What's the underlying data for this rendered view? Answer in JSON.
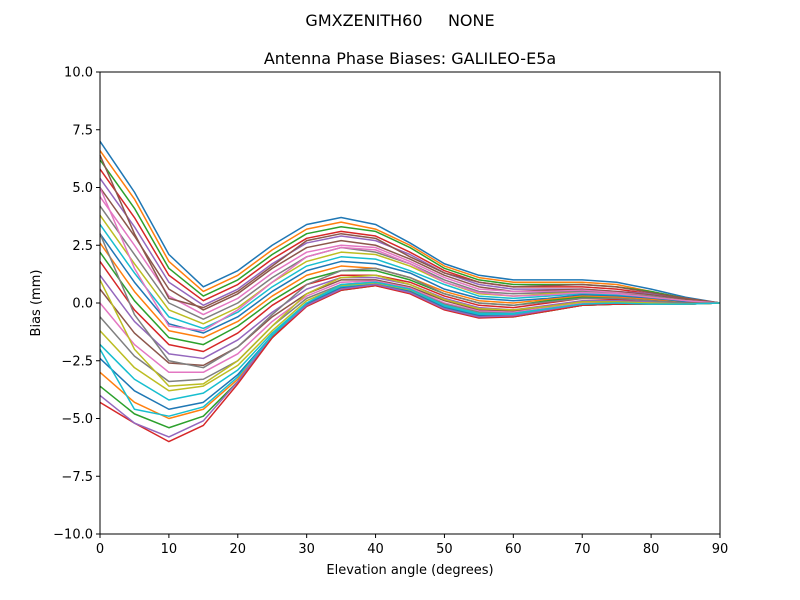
{
  "chart_data": {
    "type": "line",
    "suptitle": "GMXZENITH60     NONE",
    "title": "Antenna Phase Biases: GALILEO-E5a",
    "xlabel": "Elevation angle (degrees)",
    "ylabel": "Bias (mm)",
    "xlim": [
      0,
      90
    ],
    "ylim": [
      -10,
      10
    ],
    "xticks": [
      0,
      10,
      20,
      30,
      40,
      50,
      60,
      70,
      80,
      90
    ],
    "xtick_labels": [
      "0",
      "10",
      "20",
      "30",
      "40",
      "50",
      "60",
      "70",
      "80",
      "90"
    ],
    "yticks": [
      -10,
      -7.5,
      -5,
      -2.5,
      0,
      2.5,
      5,
      7.5,
      10
    ],
    "ytick_labels": [
      "−10.0",
      "−7.5",
      "−5.0",
      "−2.5",
      "0.0",
      "2.5",
      "5.0",
      "7.5",
      "10.0"
    ],
    "grid": false,
    "legend": false,
    "colors": [
      "#1f77b4",
      "#ff7f0e",
      "#2ca02c",
      "#d62728",
      "#9467bd",
      "#8c564b",
      "#e377c2",
      "#7f7f7f",
      "#bcbd22",
      "#17becf"
    ],
    "x": [
      0,
      5,
      10,
      15,
      20,
      25,
      30,
      35,
      40,
      45,
      50,
      55,
      60,
      65,
      70,
      75,
      80,
      85,
      90
    ],
    "series": [
      {
        "values": [
          7.0,
          4.8,
          2.1,
          0.7,
          1.4,
          2.5,
          3.4,
          3.7,
          3.4,
          2.6,
          1.7,
          1.2,
          1.0,
          1.0,
          1.0,
          0.9,
          0.6,
          0.25,
          0.0
        ]
      },
      {
        "values": [
          6.6,
          4.5,
          1.8,
          0.5,
          1.2,
          2.3,
          3.2,
          3.5,
          3.2,
          2.5,
          1.6,
          1.1,
          0.9,
          0.9,
          0.9,
          0.8,
          0.5,
          0.2,
          0.0
        ]
      },
      {
        "values": [
          6.2,
          4.1,
          1.5,
          0.3,
          1.0,
          2.1,
          3.0,
          3.3,
          3.1,
          2.4,
          1.5,
          1.0,
          0.8,
          0.8,
          0.8,
          0.7,
          0.5,
          0.2,
          0.0
        ]
      },
      {
        "values": [
          5.8,
          3.7,
          1.2,
          0.1,
          0.8,
          1.9,
          2.8,
          3.1,
          2.9,
          2.2,
          1.4,
          0.9,
          0.7,
          0.7,
          0.7,
          0.6,
          0.4,
          0.2,
          0.0
        ]
      },
      {
        "values": [
          5.4,
          3.3,
          0.9,
          -0.1,
          0.6,
          1.7,
          2.6,
          2.9,
          2.7,
          2.1,
          1.3,
          0.8,
          0.6,
          0.6,
          0.6,
          0.5,
          0.4,
          0.15,
          0.0
        ]
      },
      {
        "values": [
          5.0,
          2.9,
          0.6,
          -0.3,
          0.4,
          1.5,
          2.4,
          2.7,
          2.5,
          1.9,
          1.2,
          0.7,
          0.5,
          0.55,
          0.6,
          0.5,
          0.35,
          0.15,
          0.0
        ]
      },
      {
        "values": [
          4.6,
          2.5,
          0.3,
          -0.5,
          0.2,
          1.3,
          2.2,
          2.5,
          2.4,
          1.8,
          1.1,
          0.6,
          0.5,
          0.5,
          0.55,
          0.45,
          0.3,
          0.1,
          0.0
        ]
      },
      {
        "values": [
          4.2,
          2.1,
          0.0,
          -0.7,
          0.0,
          1.1,
          2.0,
          2.4,
          2.2,
          1.7,
          1.0,
          0.5,
          0.4,
          0.45,
          0.5,
          0.4,
          0.3,
          0.1,
          0.0
        ]
      },
      {
        "values": [
          3.8,
          1.7,
          -0.3,
          -0.9,
          -0.2,
          0.9,
          1.8,
          2.2,
          2.1,
          1.6,
          0.9,
          0.4,
          0.3,
          0.4,
          0.45,
          0.4,
          0.25,
          0.1,
          0.0
        ]
      },
      {
        "values": [
          3.4,
          1.3,
          -0.6,
          -1.1,
          -0.4,
          0.7,
          1.6,
          2.0,
          1.9,
          1.4,
          0.8,
          0.3,
          0.2,
          0.3,
          0.4,
          0.35,
          0.2,
          0.05,
          0.0
        ]
      },
      {
        "values": [
          3.0,
          0.9,
          -0.9,
          -1.3,
          -0.6,
          0.5,
          1.4,
          1.8,
          1.7,
          1.3,
          0.6,
          0.2,
          0.1,
          0.2,
          0.35,
          0.3,
          0.2,
          0.05,
          0.0
        ]
      },
      {
        "values": [
          2.6,
          0.5,
          -1.2,
          -1.5,
          -0.8,
          0.3,
          1.2,
          1.6,
          1.5,
          1.1,
          0.5,
          0.1,
          0.0,
          0.15,
          0.3,
          0.25,
          0.15,
          0.0,
          0.0
        ]
      },
      {
        "values": [
          2.2,
          0.1,
          -1.5,
          -1.8,
          -1.0,
          0.1,
          1.0,
          1.4,
          1.4,
          1.0,
          0.4,
          0.0,
          -0.1,
          0.1,
          0.25,
          0.2,
          0.1,
          0.0,
          0.0
        ]
      },
      {
        "values": [
          1.8,
          -0.3,
          -1.8,
          -2.1,
          -1.3,
          -0.1,
          0.8,
          1.2,
          1.2,
          0.9,
          0.3,
          -0.1,
          -0.2,
          0.0,
          0.2,
          0.15,
          0.1,
          0.0,
          0.0
        ]
      },
      {
        "values": [
          1.2,
          -0.8,
          -2.2,
          -2.4,
          -1.6,
          -0.4,
          0.6,
          1.1,
          1.1,
          0.8,
          0.2,
          -0.2,
          -0.3,
          -0.1,
          0.1,
          0.1,
          0.05,
          -0.05,
          0.0
        ]
      },
      {
        "values": [
          0.6,
          -1.3,
          -2.6,
          -2.7,
          -1.9,
          -0.6,
          0.4,
          1.0,
          1.0,
          0.7,
          0.1,
          -0.3,
          -0.35,
          -0.15,
          0.05,
          0.05,
          0.0,
          -0.05,
          0.0
        ]
      },
      {
        "values": [
          0.0,
          -1.8,
          -3.0,
          -3.0,
          -2.2,
          -0.8,
          0.3,
          0.9,
          0.95,
          0.65,
          0.0,
          -0.35,
          -0.4,
          -0.2,
          0.0,
          0.0,
          0.0,
          -0.05,
          0.0
        ]
      },
      {
        "values": [
          -0.6,
          -2.3,
          -3.4,
          -3.3,
          -2.5,
          -1.0,
          0.2,
          0.8,
          0.9,
          0.6,
          -0.05,
          -0.4,
          -0.45,
          -0.25,
          -0.05,
          0.0,
          -0.05,
          -0.05,
          0.0
        ]
      },
      {
        "values": [
          -1.2,
          -2.8,
          -3.8,
          -3.6,
          -2.7,
          -1.2,
          0.1,
          0.75,
          0.85,
          0.55,
          -0.1,
          -0.45,
          -0.5,
          -0.3,
          -0.05,
          -0.05,
          -0.05,
          -0.05,
          0.0
        ]
      },
      {
        "values": [
          -1.8,
          -3.3,
          -4.2,
          -3.9,
          -2.9,
          -1.3,
          0.0,
          0.7,
          0.8,
          0.5,
          -0.15,
          -0.5,
          -0.5,
          -0.3,
          -0.1,
          -0.05,
          -0.05,
          -0.05,
          0.0
        ]
      },
      {
        "values": [
          -2.4,
          -3.8,
          -4.6,
          -4.3,
          -3.1,
          -1.4,
          -0.05,
          0.65,
          0.8,
          0.5,
          -0.2,
          -0.55,
          -0.55,
          -0.35,
          -0.1,
          -0.05,
          -0.05,
          -0.05,
          0.0
        ]
      },
      {
        "values": [
          -3.0,
          -4.3,
          -5.0,
          -4.6,
          -3.3,
          -1.5,
          -0.1,
          0.6,
          0.75,
          0.45,
          -0.25,
          -0.6,
          -0.55,
          -0.35,
          -0.1,
          -0.05,
          -0.05,
          -0.05,
          0.0
        ]
      },
      {
        "values": [
          -3.6,
          -4.8,
          -5.4,
          -4.9,
          -3.4,
          -1.5,
          -0.1,
          0.55,
          0.75,
          0.45,
          -0.25,
          -0.6,
          -0.6,
          -0.35,
          -0.1,
          -0.05,
          -0.05,
          -0.05,
          0.0
        ]
      },
      {
        "values": [
          -4.3,
          -5.2,
          -6.0,
          -5.3,
          -3.5,
          -1.5,
          -0.15,
          0.55,
          0.75,
          0.4,
          -0.3,
          -0.65,
          -0.6,
          -0.35,
          -0.1,
          -0.05,
          -0.05,
          -0.05,
          0.0
        ]
      },
      {
        "values": [
          -4.0,
          -5.2,
          -5.8,
          -5.1,
          -3.4,
          -1.4,
          -0.1,
          0.6,
          0.8,
          0.45,
          -0.25,
          -0.6,
          -0.55,
          -0.3,
          -0.05,
          0.0,
          -0.05,
          -0.05,
          0.0
        ]
      },
      {
        "values": [
          6.4,
          3.0,
          0.2,
          -0.2,
          0.5,
          1.6,
          2.7,
          3.0,
          2.8,
          2.0,
          1.3,
          0.9,
          0.7,
          0.75,
          0.8,
          0.7,
          0.45,
          0.2,
          0.0
        ]
      },
      {
        "values": [
          5.0,
          1.5,
          -1.0,
          -1.2,
          -0.3,
          0.9,
          2.0,
          2.4,
          2.3,
          1.7,
          0.9,
          0.45,
          0.3,
          0.35,
          0.45,
          0.4,
          0.25,
          0.1,
          0.0
        ]
      },
      {
        "values": [
          3.0,
          -0.5,
          -2.5,
          -2.8,
          -1.9,
          -0.5,
          0.8,
          1.4,
          1.5,
          1.1,
          0.4,
          0.0,
          -0.1,
          0.05,
          0.2,
          0.2,
          0.1,
          0.0,
          0.0
        ]
      },
      {
        "values": [
          1.0,
          -2.0,
          -3.6,
          -3.5,
          -2.5,
          -1.0,
          0.4,
          1.1,
          1.2,
          0.8,
          0.15,
          -0.25,
          -0.3,
          -0.15,
          0.05,
          0.05,
          0.0,
          -0.05,
          0.0
        ]
      },
      {
        "values": [
          -2.0,
          -4.6,
          -4.9,
          -4.5,
          -3.2,
          -1.4,
          0.0,
          0.8,
          0.9,
          0.6,
          -0.1,
          -0.45,
          -0.45,
          -0.25,
          -0.05,
          0.0,
          -0.05,
          -0.05,
          0.0
        ]
      }
    ]
  }
}
